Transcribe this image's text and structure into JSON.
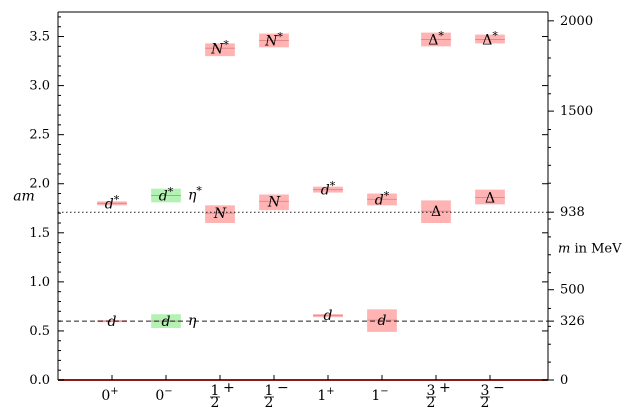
{
  "chart_data": {
    "type": "bar",
    "left_axis": {
      "label": "am",
      "range": [
        0.0,
        3.75
      ],
      "ticks": [
        {
          "value": 0.0,
          "label": "0.0"
        },
        {
          "value": 0.5,
          "label": "0.5"
        },
        {
          "value": 1.0,
          "label": "1.0"
        },
        {
          "value": 1.5,
          "label": "1.5"
        },
        {
          "value": 2.0,
          "label": "2.0"
        },
        {
          "value": 2.5,
          "label": "2.5"
        },
        {
          "value": 3.0,
          "label": "3.0"
        },
        {
          "value": 3.5,
          "label": "3.5"
        }
      ]
    },
    "right_axis": {
      "label_var": "m",
      "label_rest": " in MeV",
      "ticks": [
        {
          "value": 0,
          "label": "0",
          "am": 0.0
        },
        {
          "value": 326,
          "label": "326",
          "am": 0.6
        },
        {
          "value": 500,
          "label": "500",
          "am": 0.92
        },
        {
          "value": 938,
          "label": "938",
          "am": 1.71
        },
        {
          "value": 1500,
          "label": "1500",
          "am": 2.74
        },
        {
          "value": 2000,
          "label": "2000",
          "am": 3.66
        }
      ]
    },
    "categories": [
      {
        "main": "0",
        "sup": "+",
        "fraction": false
      },
      {
        "main": "0",
        "sup": "−",
        "fraction": false
      },
      {
        "num": "1",
        "den": "2",
        "sup": "+",
        "fraction": true
      },
      {
        "num": "1",
        "den": "2",
        "sup": "−",
        "fraction": true
      },
      {
        "main": "1",
        "sup": "+",
        "fraction": false
      },
      {
        "main": "1",
        "sup": "−",
        "fraction": false
      },
      {
        "num": "3",
        "den": "2",
        "sup": "+",
        "fraction": true
      },
      {
        "num": "3",
        "den": "2",
        "sup": "−",
        "fraction": true
      }
    ],
    "reference_lines": [
      {
        "am": 1.71,
        "style": "dotted"
      },
      {
        "am": 0.6,
        "style": "dashed"
      }
    ],
    "colors": {
      "pink": "#ffb3b3",
      "green": "#b3f2b3"
    },
    "states": [
      {
        "cat": 0,
        "label": "d*",
        "center": 1.8,
        "low": 1.78,
        "high": 1.82,
        "color": "pink",
        "width": 0.5
      },
      {
        "cat": 0,
        "label": "d",
        "center": 0.6,
        "low": 0.59,
        "high": 0.61,
        "color": "pink",
        "width": 0.5
      },
      {
        "cat": 1,
        "label": "d*",
        "center": 1.88,
        "low": 1.81,
        "high": 1.95,
        "color": "green",
        "width": 0.5
      },
      {
        "cat": 1,
        "label": "η*",
        "center": 1.89,
        "low": 0,
        "high": 0,
        "color": "green",
        "width": 0,
        "side": "right"
      },
      {
        "cat": 1,
        "label": "d",
        "center": 0.6,
        "low": 0.53,
        "high": 0.67,
        "color": "green",
        "width": 0.5
      },
      {
        "cat": 1,
        "label": "η",
        "center": 0.61,
        "low": 0,
        "high": 0,
        "color": "green",
        "width": 0,
        "side": "right"
      },
      {
        "cat": 2,
        "label": "N*",
        "center": 3.38,
        "low": 3.3,
        "high": 3.43,
        "color": "pink",
        "width": 0.5
      },
      {
        "cat": 2,
        "label": "N",
        "center": 1.7,
        "low": 1.6,
        "high": 1.78,
        "color": "pink",
        "width": 0.5
      },
      {
        "cat": 3,
        "label": "N*",
        "center": 3.46,
        "low": 3.39,
        "high": 3.53,
        "color": "pink",
        "width": 0.5
      },
      {
        "cat": 3,
        "label": "N",
        "center": 1.82,
        "low": 1.73,
        "high": 1.89,
        "color": "pink",
        "width": 0.5
      },
      {
        "cat": 4,
        "label": "d*",
        "center": 1.94,
        "low": 1.91,
        "high": 1.97,
        "color": "pink",
        "width": 0.5
      },
      {
        "cat": 4,
        "label": "d",
        "center": 0.66,
        "low": 0.64,
        "high": 0.67,
        "color": "pink",
        "width": 0.5
      },
      {
        "cat": 5,
        "label": "d*",
        "center": 1.84,
        "low": 1.78,
        "high": 1.9,
        "color": "pink",
        "width": 0.5
      },
      {
        "cat": 5,
        "label": "d",
        "center": 0.61,
        "low": 0.49,
        "high": 0.72,
        "color": "pink",
        "width": 0.5
      },
      {
        "cat": 6,
        "label": "Δ*",
        "center": 3.47,
        "low": 3.4,
        "high": 3.54,
        "color": "pink",
        "width": 0.5
      },
      {
        "cat": 6,
        "label": "Δ",
        "center": 1.72,
        "low": 1.6,
        "high": 1.83,
        "color": "pink",
        "width": 0.5
      },
      {
        "cat": 7,
        "label": "Δ*",
        "center": 3.47,
        "low": 3.43,
        "high": 3.52,
        "color": "pink",
        "width": 0.5
      },
      {
        "cat": 7,
        "label": "Δ",
        "center": 1.86,
        "low": 1.79,
        "high": 1.94,
        "color": "pink",
        "width": 0.5
      }
    ]
  }
}
